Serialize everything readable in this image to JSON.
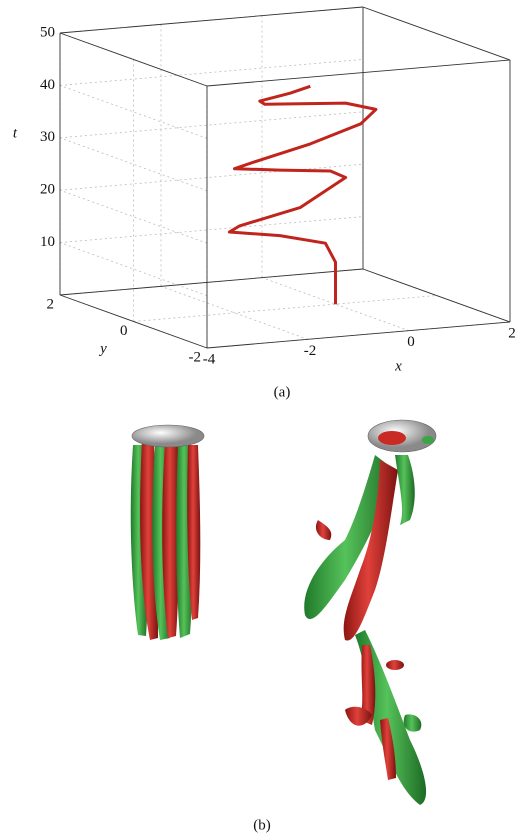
{
  "chart_data": {
    "type": "line3d",
    "xlabel": "x",
    "ylabel": "y",
    "zlabel": "t",
    "xlim": [
      -4,
      2
    ],
    "ylim": [
      -2,
      2
    ],
    "zlim": [
      0,
      50
    ],
    "xticks": [
      -4,
      -2,
      0,
      2
    ],
    "yticks": [
      -2,
      0,
      2
    ],
    "zticks": [
      10,
      20,
      30,
      40,
      50
    ],
    "grid": true,
    "series": [
      {
        "color": "#c0241c",
        "x": [
          0,
          0,
          -0.2,
          -1.1,
          -2.1,
          -1.9,
          -0.7,
          0.2,
          -0.1,
          -1.1,
          -2.0,
          -1.6,
          -0.5,
          0.5,
          0.8,
          0.2,
          -1.4,
          -1.5,
          -0.9,
          -0.5
        ],
        "y": [
          0,
          0,
          0,
          0,
          0,
          0,
          0,
          0,
          0,
          0,
          0,
          0,
          0,
          0,
          0,
          0,
          0,
          0,
          0,
          0
        ],
        "z": [
          0,
          8,
          11.8,
          14,
          15.5,
          16.5,
          19,
          24,
          25.5,
          26.5,
          27.5,
          28.5,
          31,
          34,
          36.5,
          38.2,
          39.3,
          40,
          41,
          42
        ]
      }
    ]
  },
  "captions": [
    "(a)",
    "(b)"
  ]
}
